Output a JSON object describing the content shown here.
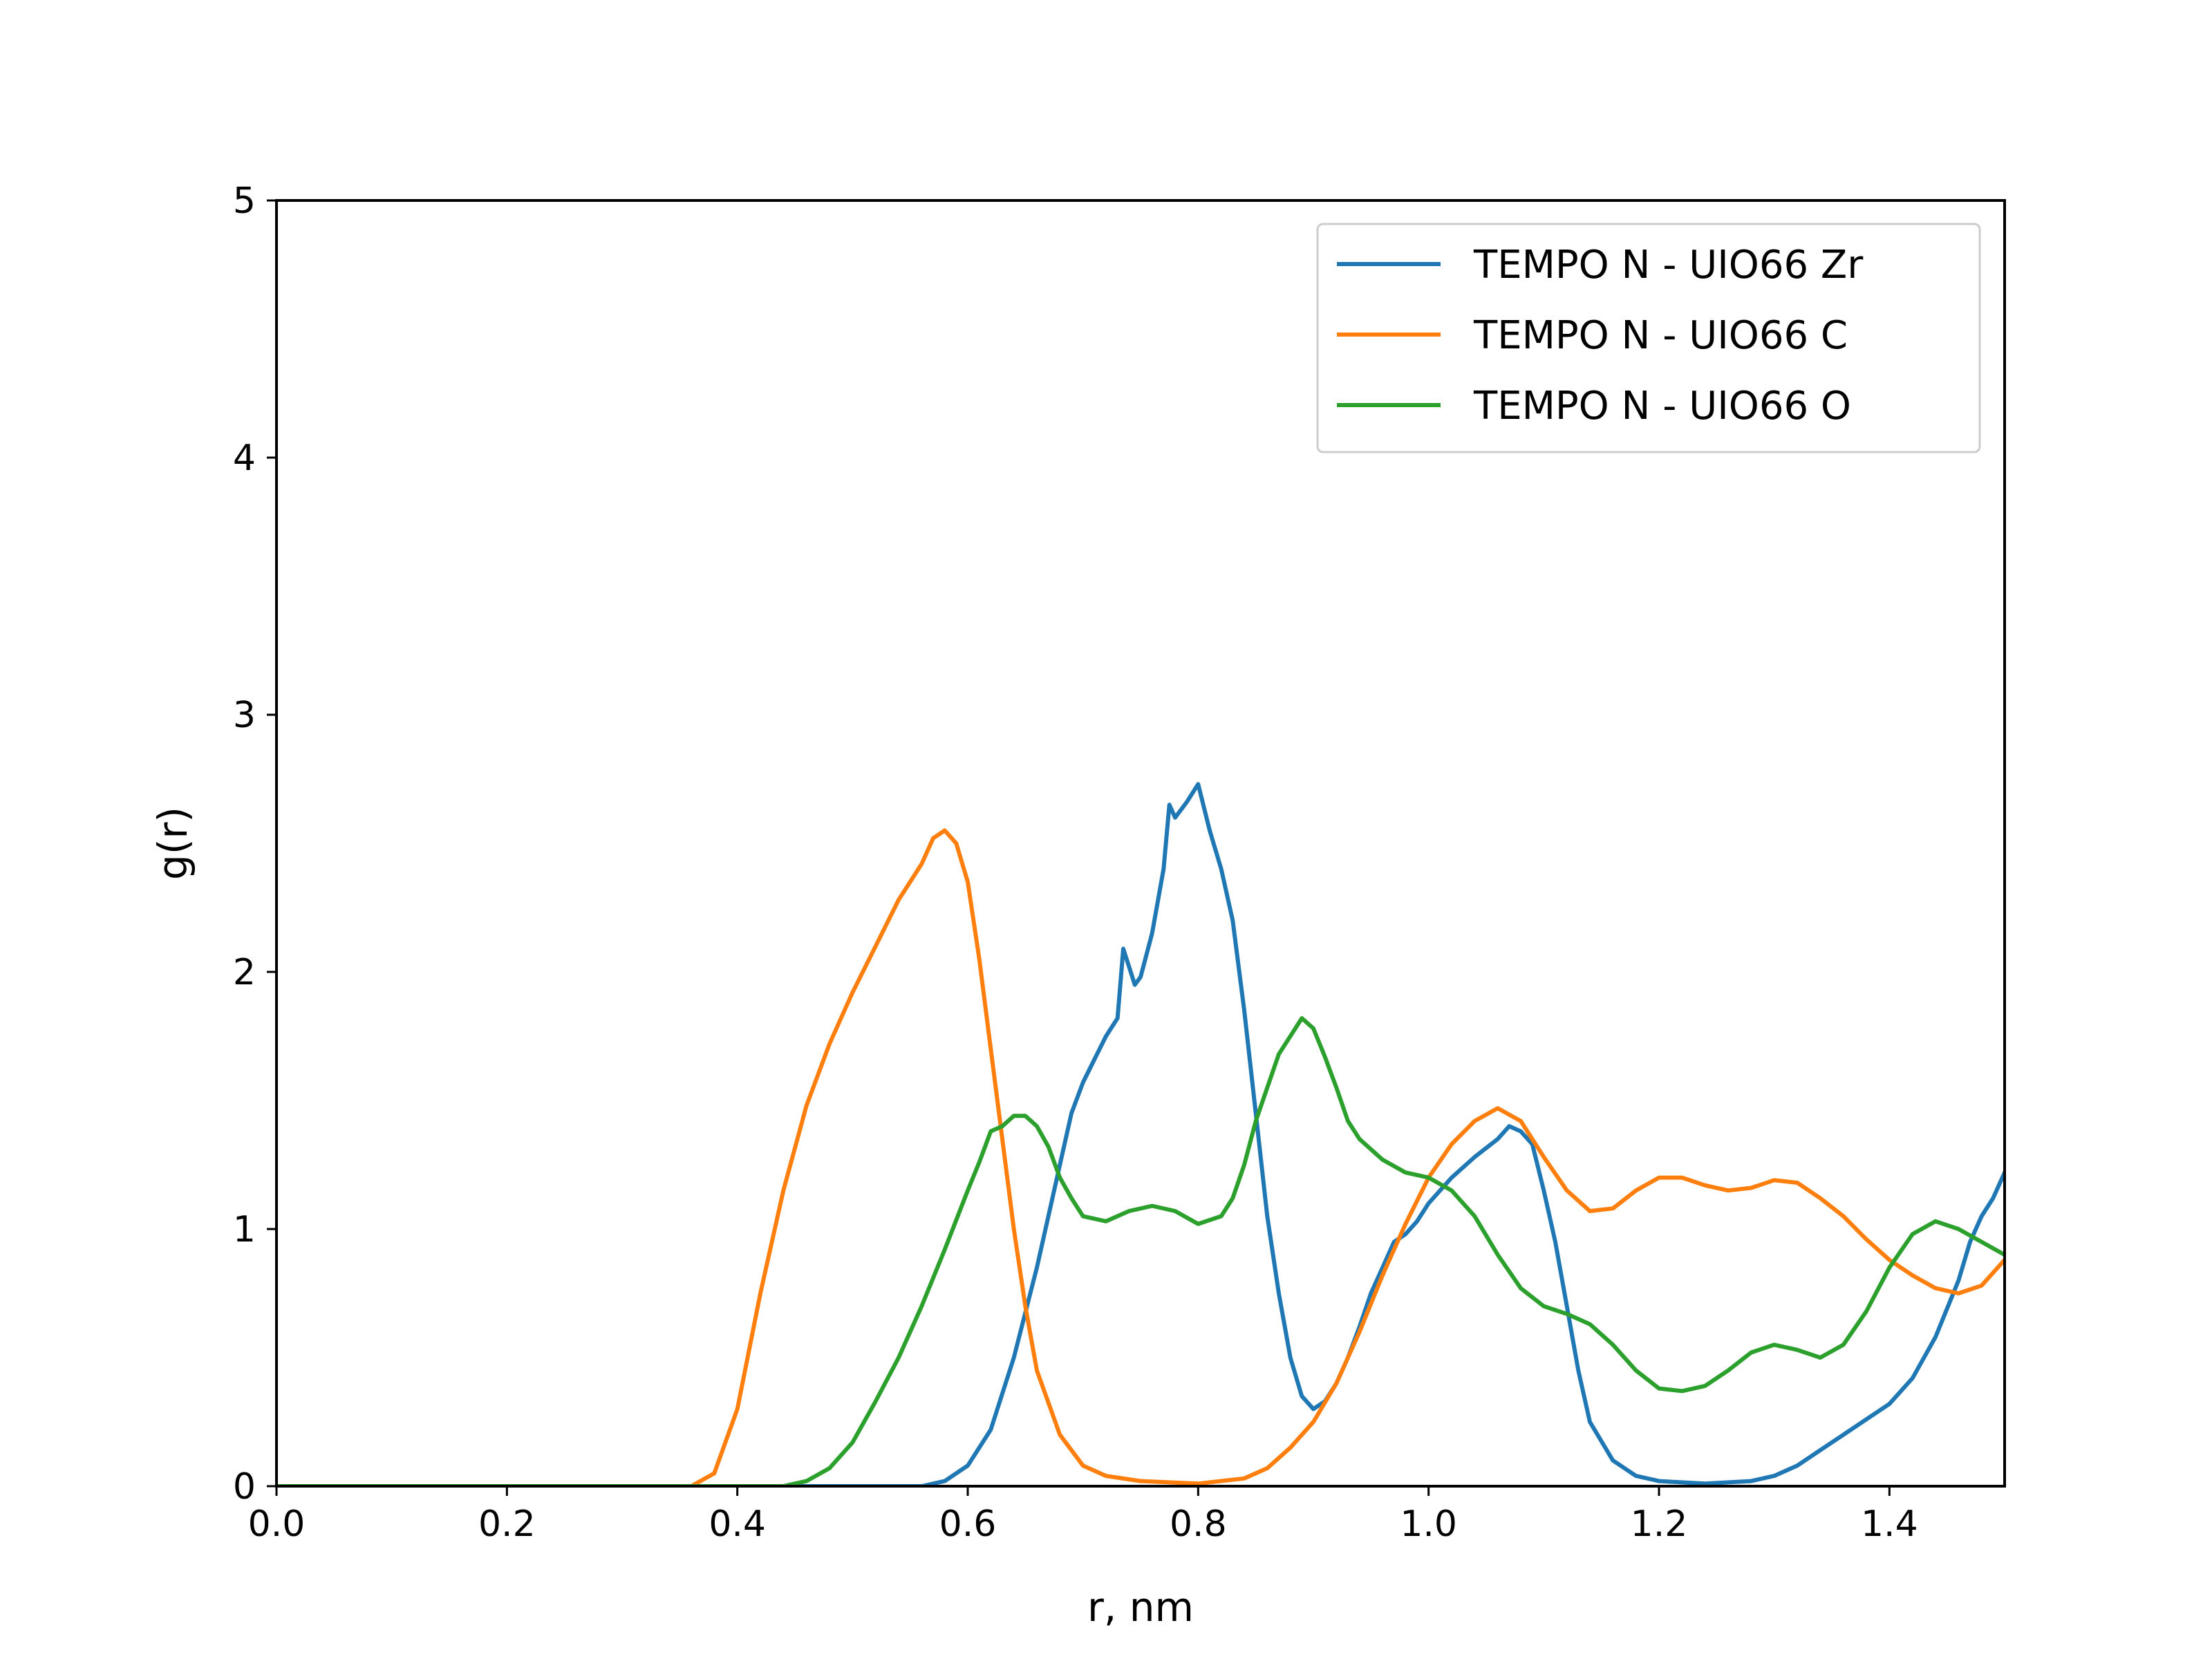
{
  "chart_data": {
    "type": "line",
    "title": "",
    "xlabel": "r, nm",
    "ylabel": "g(r)",
    "xlim": [
      0.0,
      1.5
    ],
    "ylim": [
      0,
      5
    ],
    "xticks": [
      "0.0",
      "0.2",
      "0.4",
      "0.6",
      "0.8",
      "1.0",
      "1.2",
      "1.4"
    ],
    "yticks": [
      "0",
      "1",
      "2",
      "3",
      "4",
      "5"
    ],
    "grid": false,
    "legend_position": "top-right",
    "series": [
      {
        "name": "TEMPO N - UIO66 Zr",
        "color": "#1f77b4",
        "points": [
          [
            0.0,
            0.0
          ],
          [
            0.56,
            0.0
          ],
          [
            0.58,
            0.02
          ],
          [
            0.6,
            0.08
          ],
          [
            0.62,
            0.22
          ],
          [
            0.64,
            0.5
          ],
          [
            0.66,
            0.85
          ],
          [
            0.68,
            1.25
          ],
          [
            0.69,
            1.45
          ],
          [
            0.7,
            1.57
          ],
          [
            0.71,
            1.66
          ],
          [
            0.72,
            1.75
          ],
          [
            0.73,
            1.82
          ],
          [
            0.735,
            2.09
          ],
          [
            0.745,
            1.95
          ],
          [
            0.75,
            1.98
          ],
          [
            0.76,
            2.15
          ],
          [
            0.77,
            2.4
          ],
          [
            0.775,
            2.65
          ],
          [
            0.78,
            2.6
          ],
          [
            0.79,
            2.66
          ],
          [
            0.8,
            2.73
          ],
          [
            0.81,
            2.55
          ],
          [
            0.82,
            2.4
          ],
          [
            0.83,
            2.2
          ],
          [
            0.84,
            1.85
          ],
          [
            0.85,
            1.45
          ],
          [
            0.86,
            1.05
          ],
          [
            0.87,
            0.75
          ],
          [
            0.88,
            0.5
          ],
          [
            0.89,
            0.35
          ],
          [
            0.9,
            0.3
          ],
          [
            0.91,
            0.33
          ],
          [
            0.92,
            0.4
          ],
          [
            0.93,
            0.5
          ],
          [
            0.94,
            0.62
          ],
          [
            0.95,
            0.75
          ],
          [
            0.96,
            0.85
          ],
          [
            0.97,
            0.95
          ],
          [
            0.98,
            0.98
          ],
          [
            0.99,
            1.03
          ],
          [
            1.0,
            1.1
          ],
          [
            1.02,
            1.2
          ],
          [
            1.04,
            1.28
          ],
          [
            1.06,
            1.35
          ],
          [
            1.07,
            1.4
          ],
          [
            1.08,
            1.38
          ],
          [
            1.09,
            1.33
          ],
          [
            1.1,
            1.15
          ],
          [
            1.11,
            0.95
          ],
          [
            1.12,
            0.7
          ],
          [
            1.13,
            0.45
          ],
          [
            1.14,
            0.25
          ],
          [
            1.16,
            0.1
          ],
          [
            1.18,
            0.04
          ],
          [
            1.2,
            0.02
          ],
          [
            1.24,
            0.01
          ],
          [
            1.28,
            0.02
          ],
          [
            1.3,
            0.04
          ],
          [
            1.32,
            0.08
          ],
          [
            1.34,
            0.14
          ],
          [
            1.36,
            0.2
          ],
          [
            1.38,
            0.26
          ],
          [
            1.4,
            0.32
          ],
          [
            1.42,
            0.42
          ],
          [
            1.44,
            0.58
          ],
          [
            1.46,
            0.8
          ],
          [
            1.47,
            0.95
          ],
          [
            1.48,
            1.05
          ],
          [
            1.49,
            1.12
          ],
          [
            1.5,
            1.22
          ]
        ]
      },
      {
        "name": "TEMPO N - UIO66 C",
        "color": "#ff7f0e",
        "points": [
          [
            0.0,
            0.0
          ],
          [
            0.36,
            0.0
          ],
          [
            0.38,
            0.05
          ],
          [
            0.4,
            0.3
          ],
          [
            0.42,
            0.75
          ],
          [
            0.44,
            1.15
          ],
          [
            0.46,
            1.48
          ],
          [
            0.48,
            1.72
          ],
          [
            0.5,
            1.92
          ],
          [
            0.52,
            2.1
          ],
          [
            0.54,
            2.28
          ],
          [
            0.56,
            2.42
          ],
          [
            0.57,
            2.52
          ],
          [
            0.58,
            2.55
          ],
          [
            0.59,
            2.5
          ],
          [
            0.6,
            2.35
          ],
          [
            0.61,
            2.05
          ],
          [
            0.62,
            1.7
          ],
          [
            0.63,
            1.35
          ],
          [
            0.64,
            1.0
          ],
          [
            0.65,
            0.7
          ],
          [
            0.66,
            0.45
          ],
          [
            0.68,
            0.2
          ],
          [
            0.7,
            0.08
          ],
          [
            0.72,
            0.04
          ],
          [
            0.75,
            0.02
          ],
          [
            0.8,
            0.01
          ],
          [
            0.84,
            0.03
          ],
          [
            0.86,
            0.07
          ],
          [
            0.88,
            0.15
          ],
          [
            0.9,
            0.25
          ],
          [
            0.92,
            0.4
          ],
          [
            0.94,
            0.6
          ],
          [
            0.96,
            0.82
          ],
          [
            0.98,
            1.02
          ],
          [
            1.0,
            1.2
          ],
          [
            1.02,
            1.33
          ],
          [
            1.04,
            1.42
          ],
          [
            1.06,
            1.47
          ],
          [
            1.08,
            1.42
          ],
          [
            1.1,
            1.28
          ],
          [
            1.12,
            1.15
          ],
          [
            1.14,
            1.07
          ],
          [
            1.16,
            1.08
          ],
          [
            1.18,
            1.15
          ],
          [
            1.2,
            1.2
          ],
          [
            1.22,
            1.2
          ],
          [
            1.24,
            1.17
          ],
          [
            1.26,
            1.15
          ],
          [
            1.28,
            1.16
          ],
          [
            1.3,
            1.19
          ],
          [
            1.32,
            1.18
          ],
          [
            1.34,
            1.12
          ],
          [
            1.36,
            1.05
          ],
          [
            1.38,
            0.96
          ],
          [
            1.4,
            0.88
          ],
          [
            1.42,
            0.82
          ],
          [
            1.44,
            0.77
          ],
          [
            1.46,
            0.75
          ],
          [
            1.48,
            0.78
          ],
          [
            1.5,
            0.88
          ]
        ]
      },
      {
        "name": "TEMPO N - UIO66 O",
        "color": "#2ca02c",
        "points": [
          [
            0.0,
            0.0
          ],
          [
            0.44,
            0.0
          ],
          [
            0.46,
            0.02
          ],
          [
            0.48,
            0.07
          ],
          [
            0.5,
            0.17
          ],
          [
            0.52,
            0.33
          ],
          [
            0.54,
            0.5
          ],
          [
            0.56,
            0.7
          ],
          [
            0.58,
            0.92
          ],
          [
            0.6,
            1.15
          ],
          [
            0.61,
            1.26
          ],
          [
            0.62,
            1.38
          ],
          [
            0.63,
            1.4
          ],
          [
            0.64,
            1.44
          ],
          [
            0.65,
            1.44
          ],
          [
            0.66,
            1.4
          ],
          [
            0.67,
            1.32
          ],
          [
            0.68,
            1.2
          ],
          [
            0.69,
            1.12
          ],
          [
            0.7,
            1.05
          ],
          [
            0.72,
            1.03
          ],
          [
            0.74,
            1.07
          ],
          [
            0.76,
            1.09
          ],
          [
            0.78,
            1.07
          ],
          [
            0.8,
            1.02
          ],
          [
            0.82,
            1.05
          ],
          [
            0.83,
            1.12
          ],
          [
            0.84,
            1.25
          ],
          [
            0.85,
            1.42
          ],
          [
            0.86,
            1.55
          ],
          [
            0.87,
            1.68
          ],
          [
            0.88,
            1.75
          ],
          [
            0.89,
            1.82
          ],
          [
            0.9,
            1.78
          ],
          [
            0.91,
            1.67
          ],
          [
            0.92,
            1.55
          ],
          [
            0.93,
            1.42
          ],
          [
            0.94,
            1.35
          ],
          [
            0.96,
            1.27
          ],
          [
            0.98,
            1.22
          ],
          [
            1.0,
            1.2
          ],
          [
            1.02,
            1.15
          ],
          [
            1.04,
            1.05
          ],
          [
            1.06,
            0.9
          ],
          [
            1.08,
            0.77
          ],
          [
            1.1,
            0.7
          ],
          [
            1.12,
            0.67
          ],
          [
            1.14,
            0.63
          ],
          [
            1.16,
            0.55
          ],
          [
            1.18,
            0.45
          ],
          [
            1.2,
            0.38
          ],
          [
            1.22,
            0.37
          ],
          [
            1.24,
            0.39
          ],
          [
            1.26,
            0.45
          ],
          [
            1.28,
            0.52
          ],
          [
            1.3,
            0.55
          ],
          [
            1.32,
            0.53
          ],
          [
            1.34,
            0.5
          ],
          [
            1.36,
            0.55
          ],
          [
            1.38,
            0.68
          ],
          [
            1.4,
            0.85
          ],
          [
            1.42,
            0.98
          ],
          [
            1.44,
            1.03
          ],
          [
            1.46,
            1.0
          ],
          [
            1.48,
            0.95
          ],
          [
            1.5,
            0.9
          ]
        ]
      }
    ]
  }
}
